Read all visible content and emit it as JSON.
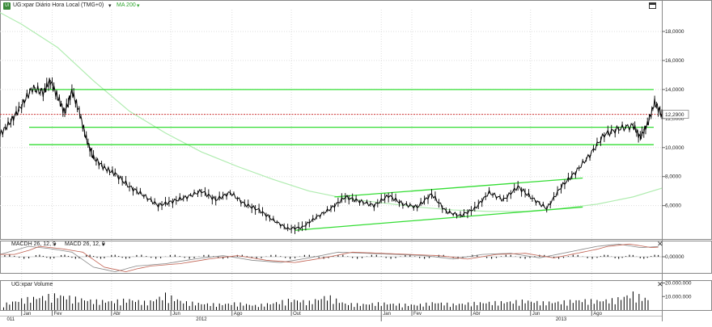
{
  "header": {
    "icon_text": "Ul",
    "symbol_label": "UG:xpar Diário Hora Local (TMG+0)",
    "ma_label": "MA 200",
    "macd_label_1": "MACDH 26, 12, 9",
    "macd_label_2": "MACD 26, 12, 9",
    "volume_label": "UG:xpar Volume",
    "last_price": "12,2900"
  },
  "colors": {
    "price": "#000000",
    "ma": "#b0ecb0",
    "trendline": "#33dd33",
    "last_price_line": "#cc3333",
    "macd_hist": "#222222",
    "macd_signal": "#c06050",
    "macd_line": "#888888",
    "grid": "#dddddd",
    "volume": "#000000"
  },
  "chart_data": [
    {
      "type": "line",
      "panel": "price",
      "y_ticks": [
        "6,0000",
        "8,0000",
        "10,0000",
        "12,0000",
        "14,0000",
        "16,0000",
        "18,0000"
      ],
      "y_tick_values": [
        6,
        8,
        10,
        12,
        14,
        16,
        18
      ],
      "ylim": [
        3.7,
        19.5
      ],
      "x_month_labels": [
        "Jan",
        "Fev",
        "Abr",
        "Jun",
        "Ago",
        "Out",
        "Jan",
        "Fev",
        "Abr",
        "Jun",
        "Ago"
      ],
      "x_year_labels": [
        "011",
        "2012",
        "2013"
      ],
      "x_year_positions": [
        2011.97,
        2012.5,
        2013.5
      ],
      "x_month_positions": [
        2012.0,
        2012.085,
        2012.25,
        2012.415,
        2012.585,
        2012.75,
        2013.0,
        2013.085,
        2013.25,
        2013.415,
        2013.585
      ],
      "xlim": [
        2011.94,
        2013.78
      ],
      "series": [
        {
          "name": "UG:xpar",
          "x": [
            2011.94,
            2011.97,
            2012.0,
            2012.03,
            2012.06,
            2012.08,
            2012.1,
            2012.12,
            2012.14,
            2012.16,
            2012.18,
            2012.2,
            2012.23,
            2012.26,
            2012.3,
            2012.34,
            2012.38,
            2012.42,
            2012.46,
            2012.5,
            2012.54,
            2012.58,
            2012.62,
            2012.66,
            2012.7,
            2012.74,
            2012.78,
            2012.82,
            2012.86,
            2012.9,
            2012.94,
            2012.98,
            2013.02,
            2013.06,
            2013.1,
            2013.14,
            2013.18,
            2013.22,
            2013.26,
            2013.3,
            2013.34,
            2013.38,
            2013.42,
            2013.46,
            2013.5,
            2013.54,
            2013.58,
            2013.62,
            2013.66,
            2013.7,
            2013.72,
            2013.74,
            2013.76,
            2013.78
          ],
          "values": [
            10.9,
            11.8,
            12.9,
            14.1,
            13.8,
            14.6,
            13.5,
            12.4,
            13.9,
            12.5,
            10.6,
            9.3,
            8.6,
            8.2,
            7.3,
            6.7,
            6.0,
            6.3,
            6.6,
            7.0,
            6.4,
            6.9,
            6.1,
            5.7,
            5.0,
            4.4,
            4.5,
            5.2,
            5.8,
            6.6,
            6.3,
            6.0,
            6.7,
            6.1,
            5.9,
            6.8,
            5.6,
            5.3,
            5.8,
            6.9,
            6.4,
            7.3,
            6.5,
            5.8,
            7.3,
            8.3,
            9.5,
            10.9,
            11.3,
            11.5,
            10.7,
            11.6,
            13.1,
            12.3
          ]
        },
        {
          "name": "MA 200",
          "x": [
            2011.94,
            2012.0,
            2012.1,
            2012.2,
            2012.3,
            2012.4,
            2012.5,
            2012.6,
            2012.7,
            2012.8,
            2012.9,
            2013.0,
            2013.1,
            2013.2,
            2013.3,
            2013.4,
            2013.5,
            2013.6,
            2013.7,
            2013.78
          ],
          "values": [
            19.3,
            18.5,
            16.9,
            14.6,
            12.5,
            11.0,
            9.7,
            8.7,
            7.8,
            7.0,
            6.5,
            6.2,
            5.9,
            5.7,
            5.6,
            5.6,
            5.8,
            6.1,
            6.6,
            7.2
          ]
        }
      ],
      "horizontal_lines": [
        14.0,
        11.4,
        10.2
      ],
      "last_price_value": 12.29,
      "trend_channel": {
        "upper": {
          "x": [
            2012.87,
            2013.56
          ],
          "values": [
            6.6,
            7.9
          ]
        },
        "lower": {
          "x": [
            2012.76,
            2013.56
          ],
          "values": [
            4.3,
            5.9
          ]
        }
      }
    },
    {
      "type": "bar",
      "panel": "macd",
      "y_ticks": [
        "0,00000"
      ],
      "y_tick_values": [
        0
      ],
      "ylim": [
        -1.4,
        1.4
      ],
      "series": [
        {
          "name": "MACD 26, 12, 9",
          "x": [
            2011.94,
            2012.02,
            2012.08,
            2012.14,
            2012.2,
            2012.26,
            2012.32,
            2012.4,
            2012.48,
            2012.56,
            2012.64,
            2012.72,
            2012.8,
            2012.88,
            2012.96,
            2013.04,
            2013.12,
            2013.2,
            2013.28,
            2013.36,
            2013.44,
            2013.52,
            2013.6,
            2013.66,
            2013.72,
            2013.78
          ],
          "values": [
            0.2,
            0.9,
            0.7,
            0.4,
            -0.9,
            -1.3,
            -0.8,
            -0.6,
            -0.2,
            0.1,
            -0.3,
            -0.5,
            -0.1,
            0.4,
            0.3,
            0.2,
            0.1,
            -0.2,
            0.2,
            0.3,
            -0.1,
            0.4,
            0.9,
            1.1,
            0.8,
            0.9
          ]
        }
      ]
    },
    {
      "type": "bar",
      "panel": "volume",
      "y_ticks": [
        "10.000.000",
        "20.000.000"
      ],
      "y_tick_values": [
        10000000,
        20000000
      ],
      "ylim": [
        0,
        21500000
      ],
      "series": [
        {
          "name": "UG:xpar Volume",
          "x": [
            2011.95,
            2012.0,
            2012.05,
            2012.1,
            2012.15,
            2012.2,
            2012.25,
            2012.3,
            2012.35,
            2012.4,
            2012.45,
            2012.5,
            2012.55,
            2012.6,
            2012.65,
            2012.7,
            2012.75,
            2012.8,
            2012.85,
            2012.9,
            2012.95,
            2013.0,
            2013.05,
            2013.1,
            2013.15,
            2013.2,
            2013.25,
            2013.3,
            2013.35,
            2013.4,
            2013.45,
            2013.5,
            2013.55,
            2013.6,
            2013.65,
            2013.7,
            2013.75
          ],
          "values": [
            5000000,
            9000000,
            11000000,
            13000000,
            10000000,
            8000000,
            7500000,
            9000000,
            6500000,
            13000000,
            7000000,
            5500000,
            5000000,
            6000000,
            4000000,
            6000000,
            9000000,
            7000000,
            12000000,
            5500000,
            5000000,
            6000000,
            5000000,
            4500000,
            6500000,
            5000000,
            6000000,
            6500000,
            7000000,
            8000000,
            6500000,
            7000000,
            8500000,
            8000000,
            9000000,
            14000000,
            8000000
          ]
        }
      ]
    }
  ]
}
